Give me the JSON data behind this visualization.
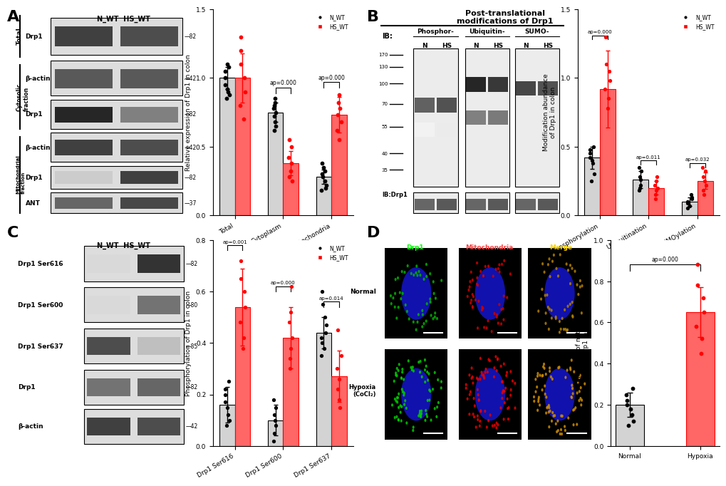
{
  "panel_A_bar": {
    "groups": [
      "Total",
      "Cytoplasm",
      "Mitochondria"
    ],
    "nwt_means": [
      1.0,
      0.75,
      0.28
    ],
    "hswt_means": [
      1.0,
      0.38,
      0.73
    ],
    "nwt_err": [
      0.08,
      0.07,
      0.05
    ],
    "hswt_err": [
      0.18,
      0.09,
      0.13
    ],
    "nwt_dots": [
      [
        0.85,
        0.88,
        0.9,
        0.92,
        0.95,
        1.0,
        1.05,
        1.08,
        1.1
      ],
      [
        0.62,
        0.65,
        0.68,
        0.72,
        0.75,
        0.78,
        0.8,
        0.82,
        0.85
      ],
      [
        0.18,
        0.2,
        0.22,
        0.25,
        0.28,
        0.3,
        0.32,
        0.35,
        0.38
      ]
    ],
    "hswt_dots": [
      [
        0.7,
        0.8,
        0.9,
        1.0,
        1.1,
        1.2,
        1.3
      ],
      [
        0.25,
        0.28,
        0.32,
        0.38,
        0.42,
        0.5,
        0.55
      ],
      [
        0.55,
        0.62,
        0.68,
        0.73,
        0.78,
        0.82,
        0.88
      ]
    ],
    "pvals": [
      "ap=0.000",
      "ap=0.000"
    ],
    "ylabel": "Relative expression of Drp1 in colon",
    "ylim": [
      0,
      1.5
    ],
    "yticks": [
      0.0,
      0.5,
      1.0,
      1.5
    ]
  },
  "panel_B_bar": {
    "groups": [
      "Phosphorylation",
      "Ubiquitination",
      "SUMOylation"
    ],
    "nwt_means": [
      0.42,
      0.26,
      0.1
    ],
    "hswt_means": [
      0.92,
      0.2,
      0.25
    ],
    "nwt_err": [
      0.08,
      0.06,
      0.03
    ],
    "hswt_err": [
      0.28,
      0.05,
      0.06
    ],
    "nwt_dots": [
      [
        0.25,
        0.3,
        0.38,
        0.4,
        0.42,
        0.45,
        0.48,
        0.5
      ],
      [
        0.18,
        0.2,
        0.22,
        0.26,
        0.28,
        0.32,
        0.35
      ],
      [
        0.05,
        0.07,
        0.09,
        0.1,
        0.12,
        0.13,
        0.15
      ]
    ],
    "hswt_dots": [
      [
        0.78,
        0.85,
        0.92,
        0.98,
        1.05,
        1.1,
        1.3
      ],
      [
        0.12,
        0.15,
        0.18,
        0.2,
        0.22,
        0.25,
        0.28
      ],
      [
        0.15,
        0.18,
        0.22,
        0.25,
        0.28,
        0.32,
        0.35
      ]
    ],
    "pvals": [
      "ap=0.000",
      "ap=0.011",
      "ap=0.032"
    ],
    "ylabel": "Modification abundance\nof Drp1 in colon",
    "ylim": [
      0,
      1.5
    ],
    "yticks": [
      0.0,
      0.5,
      1.0,
      1.5
    ]
  },
  "panel_C_bar": {
    "groups": [
      "Drp1 Ser616",
      "Drp1 Ser600",
      "Drp1 Ser637"
    ],
    "nwt_means": [
      0.16,
      0.1,
      0.44
    ],
    "hswt_means": [
      0.54,
      0.42,
      0.27
    ],
    "nwt_err": [
      0.07,
      0.06,
      0.06
    ],
    "hswt_err": [
      0.15,
      0.12,
      0.1
    ],
    "nwt_dots": [
      [
        0.08,
        0.1,
        0.12,
        0.15,
        0.17,
        0.2,
        0.22,
        0.25
      ],
      [
        0.02,
        0.05,
        0.08,
        0.1,
        0.12,
        0.15,
        0.18
      ],
      [
        0.35,
        0.38,
        0.4,
        0.42,
        0.44,
        0.47,
        0.5,
        0.55,
        0.6
      ]
    ],
    "hswt_dots": [
      [
        0.38,
        0.42,
        0.48,
        0.54,
        0.6,
        0.65,
        0.72
      ],
      [
        0.3,
        0.34,
        0.38,
        0.42,
        0.48,
        0.52,
        0.62
      ],
      [
        0.15,
        0.18,
        0.22,
        0.26,
        0.3,
        0.35,
        0.45
      ]
    ],
    "pvals": [
      "ap=0.001",
      "ap=0.000",
      "ap=0.014"
    ],
    "ylabel": "Phosphorylation of Drp1 in colon",
    "ylim": [
      0,
      0.8
    ],
    "yticks": [
      0.0,
      0.2,
      0.4,
      0.6,
      0.8
    ]
  },
  "panel_D_bar": {
    "groups": [
      "Normal",
      "Hypoxia"
    ],
    "nwt_means": [
      0.2
    ],
    "hswt_means": [
      0.65
    ],
    "nwt_err": [
      0.06
    ],
    "hswt_err": [
      0.12
    ],
    "nwt_dots": [
      0.1,
      0.12,
      0.15,
      0.18,
      0.2,
      0.22,
      0.25,
      0.28
    ],
    "hswt_dots": [
      0.45,
      0.52,
      0.58,
      0.65,
      0.72,
      0.78,
      0.88
    ],
    "pval": "ap=0.000",
    "ylabel": "Co-location of mitochondria\nand Drp1 in IECs",
    "ylim": [
      0,
      1.0
    ],
    "yticks": [
      0.0,
      0.2,
      0.4,
      0.6,
      0.8,
      1.0
    ]
  },
  "colors": {
    "nwt": "#000000",
    "hswt": "#FF0000",
    "bar_nwt": "#D3D3D3",
    "bar_hswt": "#FF6666",
    "bar_nwt_edge": "#000000",
    "bar_hswt_edge": "#FF0000"
  },
  "background": "#FFFFFF"
}
